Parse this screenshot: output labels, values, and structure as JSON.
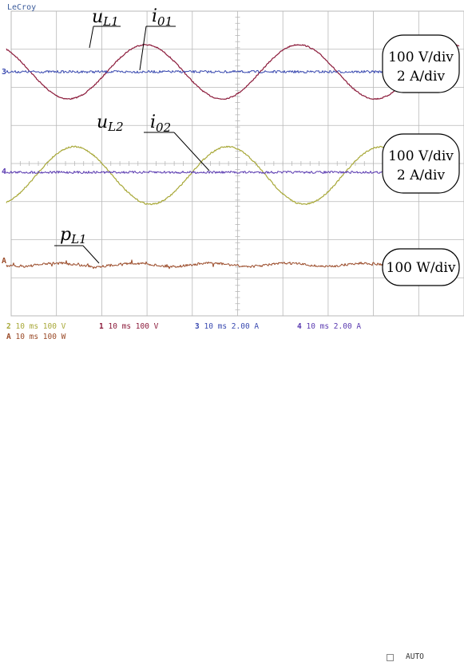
{
  "scope_brand": "LeCroy",
  "colors": {
    "ch1": "#8b1a3a",
    "ch2": "#a8a838",
    "ch3": "#3a4ab0",
    "ch4": "#5a3ab0",
    "math": "#9a4a28",
    "grid": "#b8b8b8"
  },
  "panels": [
    {
      "voltage_label": "u",
      "voltage_subscript": "L1",
      "current_label": "i",
      "current_subscript": "01",
      "scale_line1": "100 V/div",
      "scale_line2": "2 A/div",
      "marker": "3"
    },
    {
      "voltage_label": "u",
      "voltage_subscript": "L2",
      "current_label": "i",
      "current_subscript": "02",
      "scale_line1": "100 V/div",
      "scale_line2": "2 A/div",
      "marker": "4"
    },
    {
      "power_label": "p",
      "power_subscript": "L1",
      "scale_line1": "100 W/div",
      "marker": "A"
    }
  ],
  "footer": {
    "row1": [
      {
        "ch": "2",
        "text": "10 ms 100 V"
      },
      {
        "ch": "1",
        "text": "10 ms 100 V"
      },
      {
        "ch": "3",
        "text": "10 ms 2.00 A"
      },
      {
        "ch": "4",
        "text": "10 ms 2.00 A"
      }
    ],
    "row2": [
      {
        "ch": "A",
        "text": "10 ms 100 W"
      }
    ],
    "trigger_mode": "AUTO"
  }
}
